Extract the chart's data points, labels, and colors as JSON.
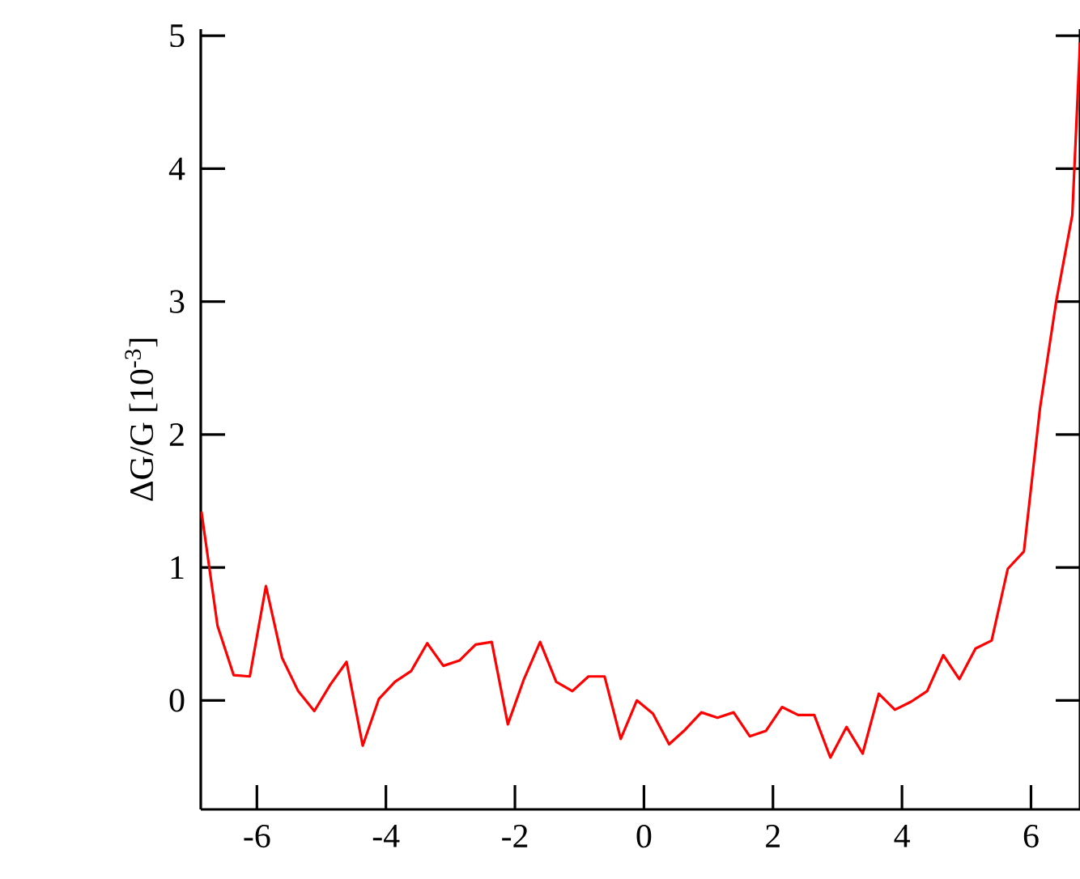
{
  "chart_data": {
    "type": "line",
    "ylabel": "ΔG/G  [10$^{-3}$]",
    "xlim": [
      -6.87,
      6.76
    ],
    "ylim": [
      -0.82,
      5.05
    ],
    "xticks": [
      -6,
      -4,
      -2,
      0,
      2,
      4,
      6
    ],
    "yticks": [
      0,
      1,
      2,
      3,
      4,
      5
    ],
    "color": "#ff0000",
    "x": [
      -6.86,
      -6.61,
      -6.36,
      -6.11,
      -5.86,
      -5.61,
      -5.36,
      -5.11,
      -4.86,
      -4.61,
      -4.36,
      -4.11,
      -3.86,
      -3.61,
      -3.36,
      -3.11,
      -2.86,
      -2.61,
      -2.36,
      -2.11,
      -1.86,
      -1.61,
      -1.36,
      -1.11,
      -0.86,
      -0.61,
      -0.36,
      -0.11,
      0.14,
      0.39,
      0.64,
      0.89,
      1.14,
      1.39,
      1.64,
      1.89,
      2.14,
      2.39,
      2.64,
      2.89,
      3.14,
      3.39,
      3.64,
      3.89,
      4.14,
      4.39,
      4.64,
      4.89,
      5.14,
      5.39,
      5.64,
      5.89,
      6.14,
      6.39,
      6.64,
      6.76
    ],
    "values": [
      1.42,
      0.56,
      0.19,
      0.18,
      0.86,
      0.32,
      0.07,
      -0.08,
      0.12,
      0.29,
      -0.34,
      0.01,
      0.14,
      0.22,
      0.43,
      0.26,
      0.3,
      0.42,
      0.44,
      -0.18,
      0.16,
      0.44,
      0.14,
      0.07,
      0.18,
      0.18,
      -0.29,
      0.0,
      -0.1,
      -0.33,
      -0.22,
      -0.09,
      -0.13,
      -0.09,
      -0.27,
      -0.23,
      -0.05,
      -0.11,
      -0.11,
      -0.43,
      -0.2,
      -0.4,
      0.05,
      -0.07,
      -0.01,
      0.07,
      0.34,
      0.16,
      0.39,
      0.45,
      0.99,
      1.12,
      2.2,
      3.0,
      3.65,
      4.95
    ]
  }
}
